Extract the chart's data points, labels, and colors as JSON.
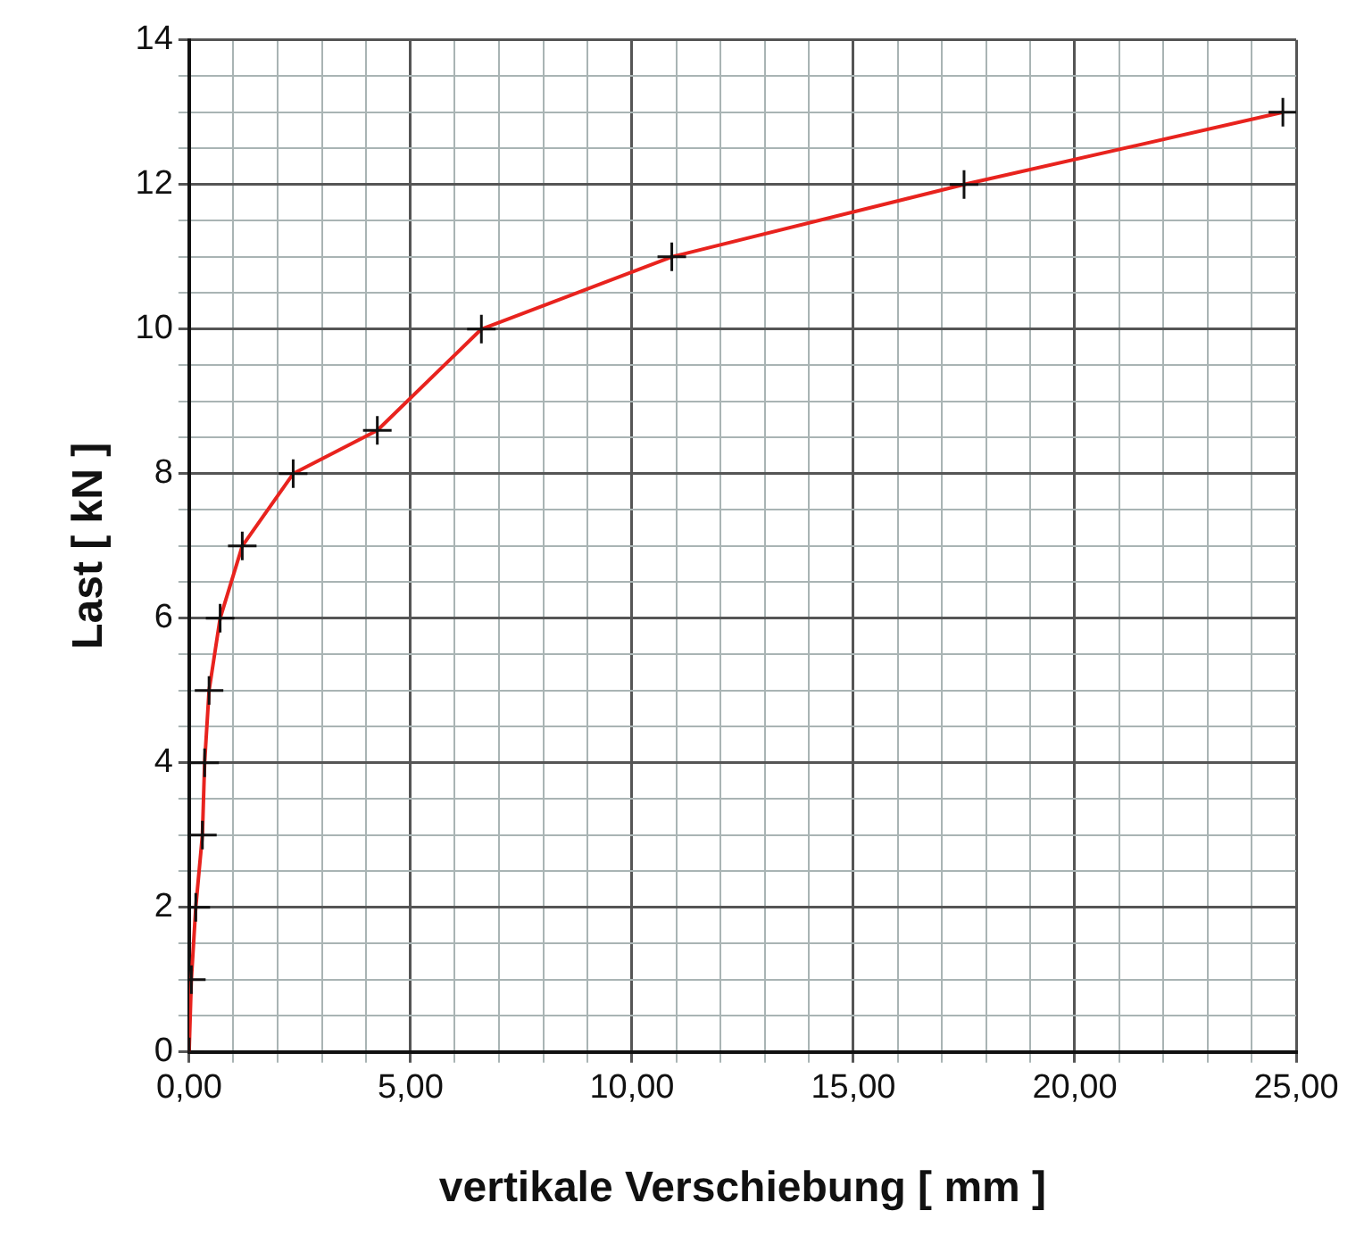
{
  "chart_data": {
    "type": "line",
    "xlabel": "vertikale Verschiebung [ mm ]",
    "ylabel": "Last [ kN ]",
    "x": [
      0,
      0.05,
      0.15,
      0.3,
      0.35,
      0.45,
      0.7,
      1.2,
      2.35,
      4.25,
      6.6,
      10.9,
      17.5,
      24.7
    ],
    "series": [
      {
        "color": "#e8231e",
        "values": [
          0,
          1,
          2,
          3,
          4,
          5,
          6,
          7,
          8,
          8.6,
          10,
          11,
          12,
          13
        ]
      }
    ],
    "xlim": [
      0,
      25
    ],
    "xticks": [
      {
        "value": 0,
        "label": "0,00"
      },
      {
        "value": 1,
        "label": null
      },
      {
        "value": 2,
        "label": null
      },
      {
        "value": 3,
        "label": null
      },
      {
        "value": 4,
        "label": null
      },
      {
        "value": 5,
        "label": "5,00"
      },
      {
        "value": 6,
        "label": null
      },
      {
        "value": 7,
        "label": null
      },
      {
        "value": 8,
        "label": null
      },
      {
        "value": 9,
        "label": null
      },
      {
        "value": 10,
        "label": "10,00"
      },
      {
        "value": 11,
        "label": null
      },
      {
        "value": 12,
        "label": null
      },
      {
        "value": 13,
        "label": null
      },
      {
        "value": 14,
        "label": null
      },
      {
        "value": 15,
        "label": "15,00"
      },
      {
        "value": 16,
        "label": null
      },
      {
        "value": 17,
        "label": null
      },
      {
        "value": 18,
        "label": null
      },
      {
        "value": 19,
        "label": null
      },
      {
        "value": 20,
        "label": "20,00"
      },
      {
        "value": 21,
        "label": null
      },
      {
        "value": 22,
        "label": null
      },
      {
        "value": 23,
        "label": null
      },
      {
        "value": 24,
        "label": null
      },
      {
        "value": 25,
        "label": "25,00"
      }
    ],
    "ylim": [
      0,
      14
    ],
    "yticks": [
      0,
      {
        "value": 0.5,
        "label": null
      },
      2,
      {
        "value": 1.5,
        "label": null
      },
      {
        "value": 1,
        "label": null
      },
      {
        "value": 2.5,
        "label": null
      },
      {
        "value": 3,
        "label": null
      },
      {
        "value": 3.5,
        "label": null
      },
      4,
      {
        "value": 4.5,
        "label": null
      },
      {
        "value": 5,
        "label": null
      },
      {
        "value": 5.5,
        "label": null
      },
      6,
      {
        "value": 6.5,
        "label": null
      },
      {
        "value": 7,
        "label": null
      },
      {
        "value": 7.5,
        "label": null
      },
      8,
      {
        "value": 8.5,
        "label": null
      },
      {
        "value": 9,
        "label": null
      },
      {
        "value": 9.5,
        "label": null
      },
      10,
      {
        "value": 10.5,
        "label": null
      },
      {
        "value": 11,
        "label": null
      },
      {
        "value": 11.5,
        "label": null
      },
      12,
      {
        "value": 12.5,
        "label": null
      },
      {
        "value": 13,
        "label": null
      },
      {
        "value": 13.5,
        "label": null
      },
      14
    ],
    "grid": true,
    "legend": false,
    "marker": "cross",
    "line_style": "solid"
  }
}
